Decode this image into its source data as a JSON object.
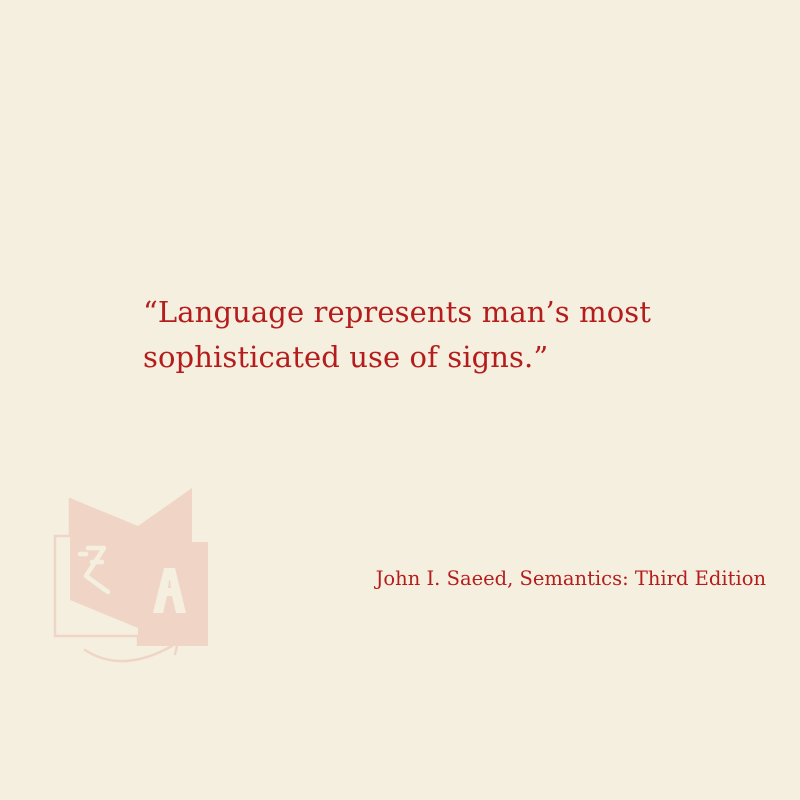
{
  "quote": {
    "lines": [
      "“Language represents man’s most",
      "sophisticated use of signs.”"
    ]
  },
  "attribution": "John I. Saeed, Semantics: Third Edition",
  "icons": {
    "decor": "translate-icon"
  },
  "colors": {
    "background": "#f5efe0",
    "text": "#b51d1d",
    "icon": "#f0d5c6"
  }
}
